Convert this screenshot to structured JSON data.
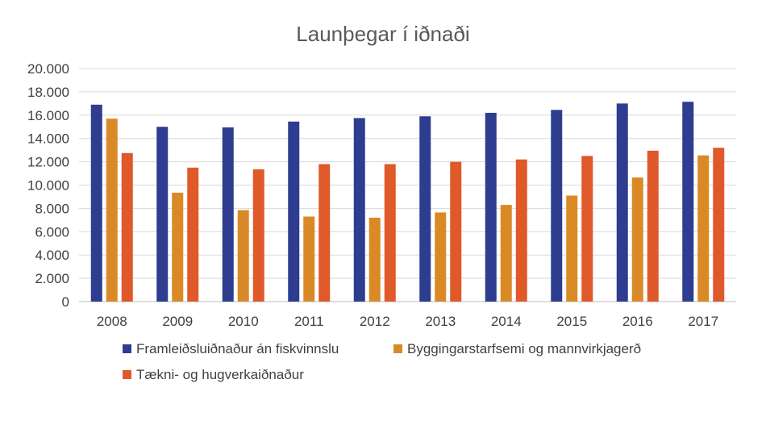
{
  "chart_data": {
    "type": "bar",
    "title": "Launþegar í iðnaði",
    "categories": [
      "2008",
      "2009",
      "2010",
      "2011",
      "2012",
      "2013",
      "2014",
      "2015",
      "2016",
      "2017"
    ],
    "series": [
      {
        "name": "Framleiðsluiðnaður án fiskvinnslu",
        "color": "#2e3d8f",
        "values": [
          16900,
          15000,
          14950,
          15450,
          15750,
          15900,
          16200,
          16450,
          17000,
          17150
        ]
      },
      {
        "name": "Byggingarstarfsemi og mannvirkjagerð",
        "color": "#d98a26",
        "values": [
          15700,
          9350,
          7850,
          7300,
          7200,
          7650,
          8300,
          9100,
          10650,
          12550
        ]
      },
      {
        "name": "Tækni- og hugverkaiðnaður",
        "color": "#e0592a",
        "values": [
          12750,
          11500,
          11350,
          11800,
          11800,
          12000,
          12200,
          12500,
          12950,
          13200
        ]
      }
    ],
    "ylim": [
      0,
      20000
    ],
    "yticks": [
      0,
      2000,
      4000,
      6000,
      8000,
      10000,
      12000,
      14000,
      16000,
      18000,
      20000
    ],
    "ytick_labels": [
      "0",
      "2.000",
      "4.000",
      "6.000",
      "8.000",
      "10.000",
      "12.000",
      "14.000",
      "16.000",
      "18.000",
      "20.000"
    ],
    "grid": true,
    "legend_position": "bottom"
  }
}
